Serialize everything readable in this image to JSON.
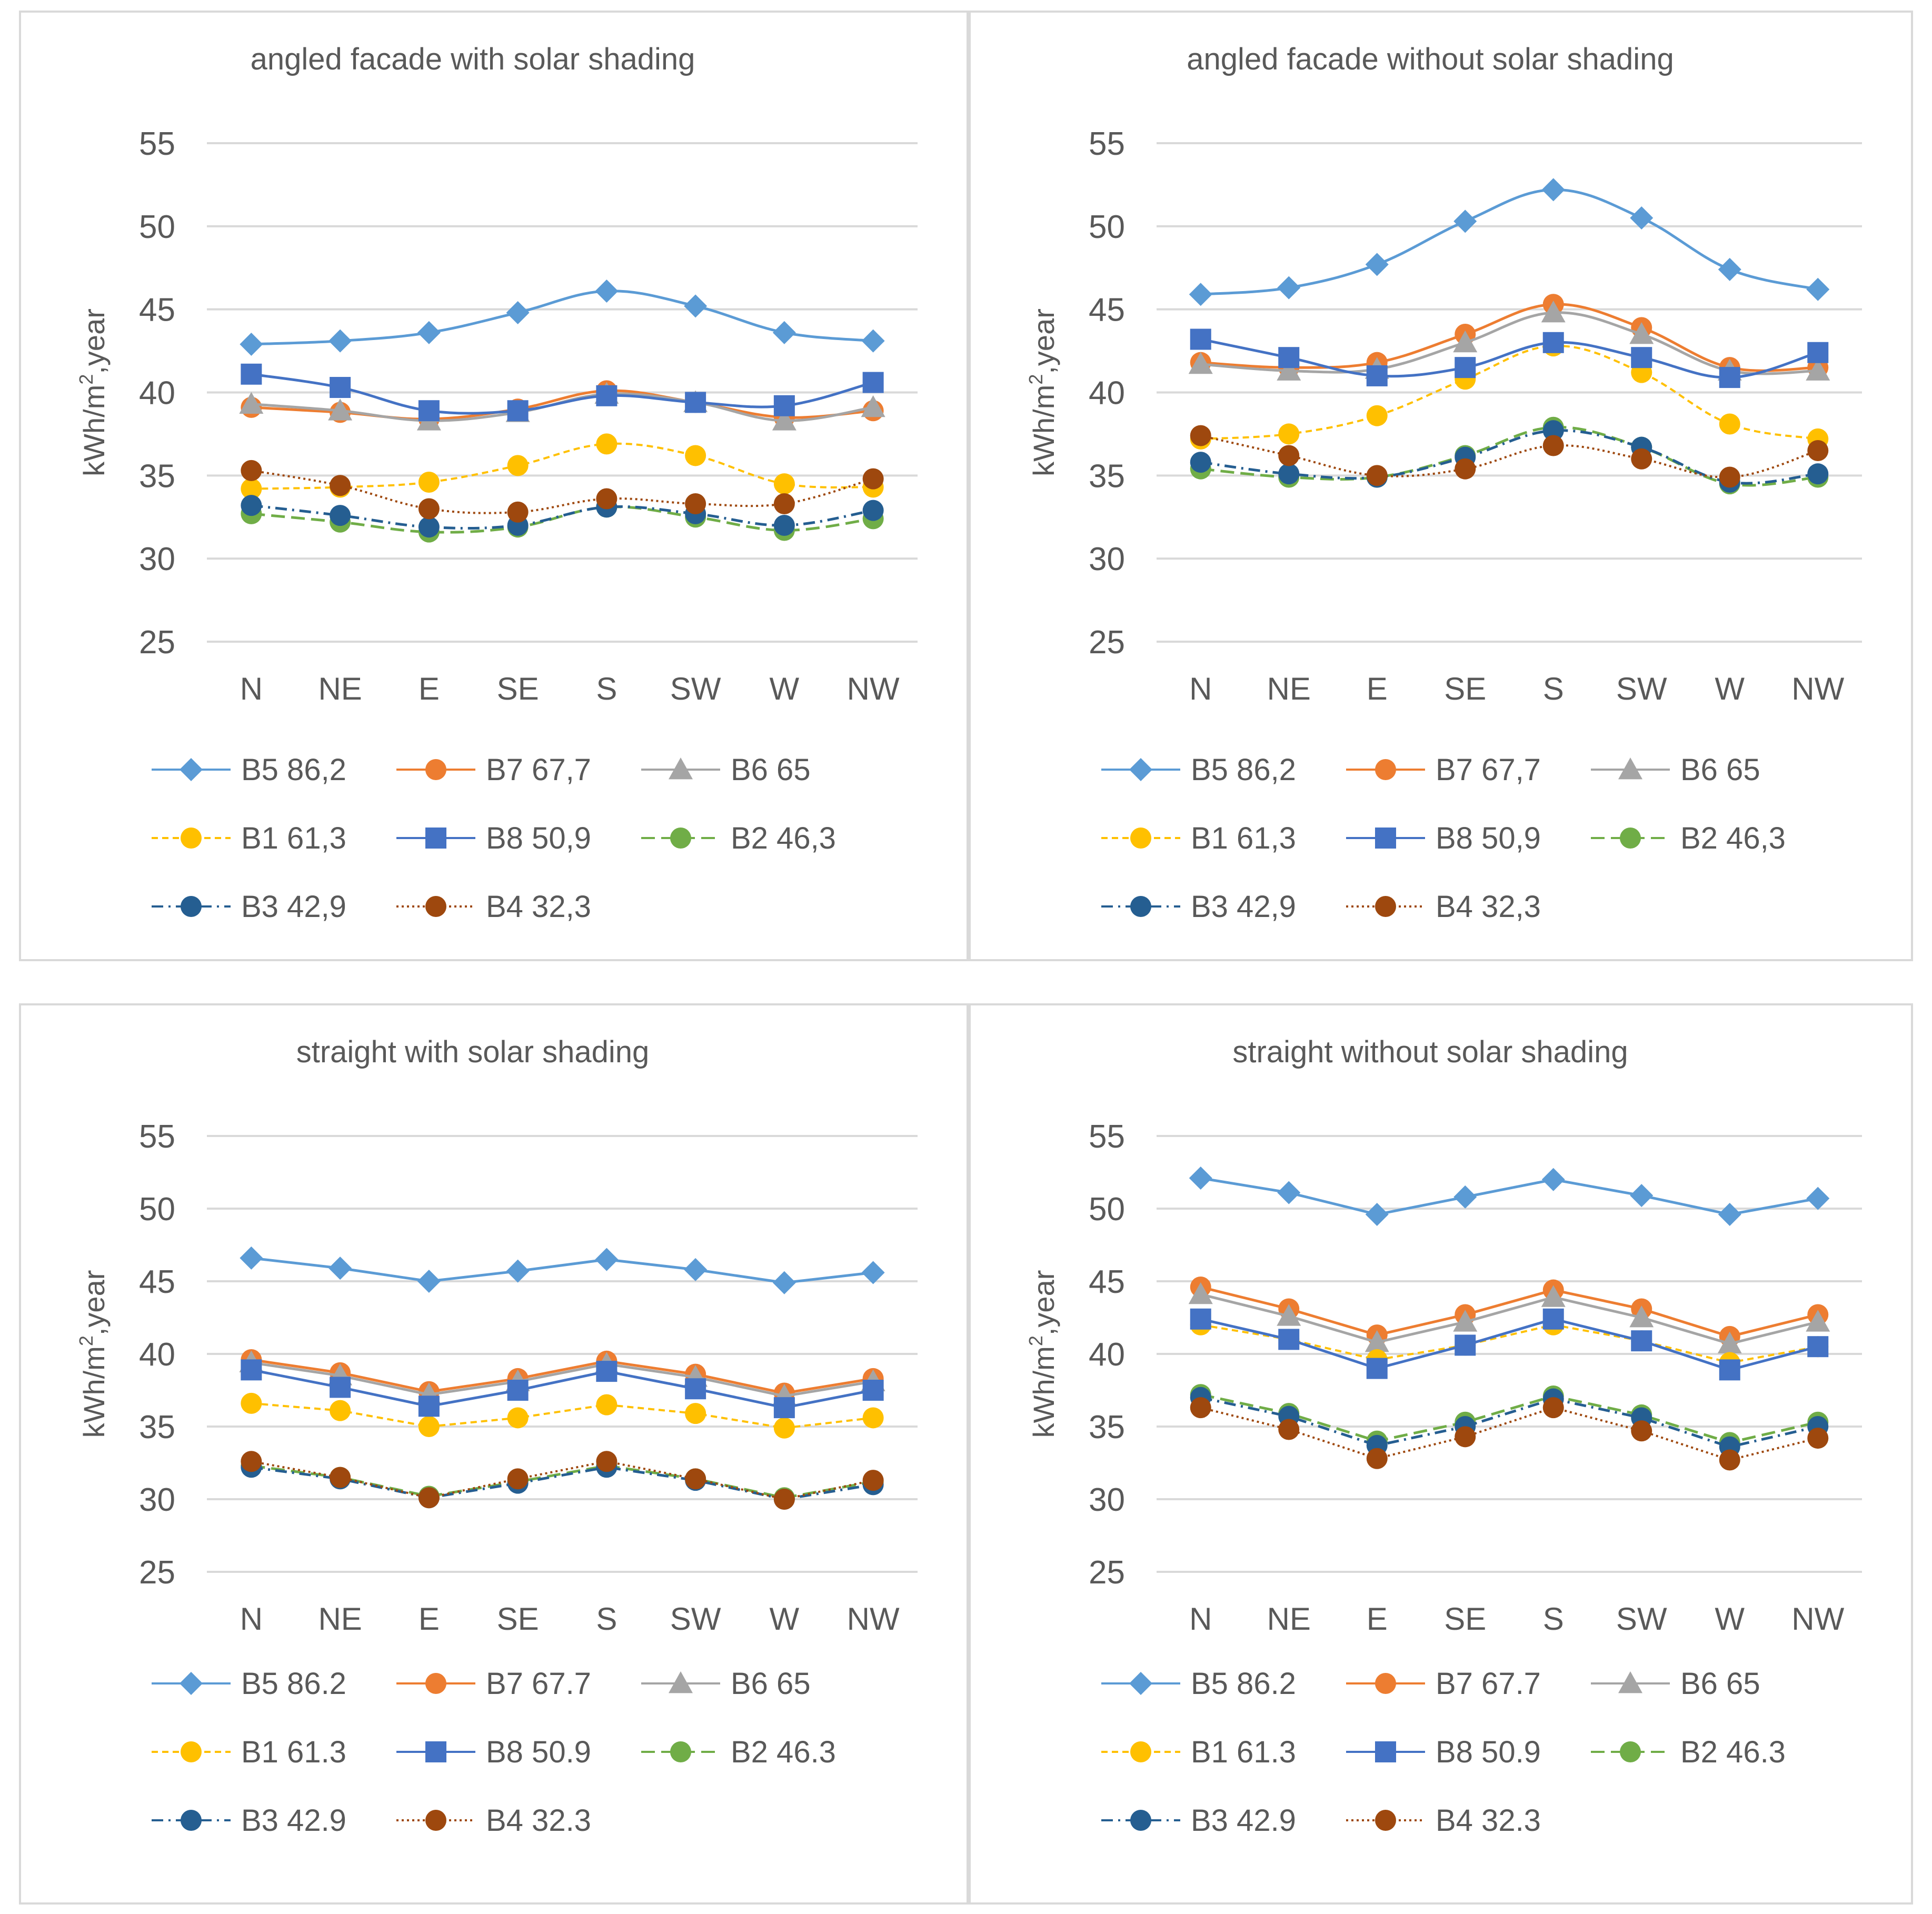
{
  "figure": {
    "y_axis_unit_main": "kWh/m",
    "y_axis_unit_sup": "2",
    "y_axis_unit_tail": ",year"
  },
  "chart_data": [
    {
      "type": "line",
      "title": "angled facade with solar shading",
      "ylabel": "kWh/m2,year",
      "categories": [
        "N",
        "NE",
        "E",
        "SE",
        "S",
        "SW",
        "W",
        "NW"
      ],
      "ylim": [
        25,
        55
      ],
      "yticks": [
        25,
        30,
        35,
        40,
        45,
        50,
        55
      ],
      "smooth": true,
      "series": [
        {
          "key": "B5",
          "name": "B5 86,2",
          "color": "#5B9BD5",
          "marker": "diamond",
          "dash": "solid",
          "values": [
            42.9,
            43.1,
            43.6,
            44.8,
            46.1,
            45.2,
            43.6,
            43.1
          ]
        },
        {
          "key": "B7",
          "name": "B7 67,7",
          "color": "#ED7D31",
          "marker": "circle",
          "dash": "solid",
          "values": [
            39.1,
            38.8,
            38.4,
            39.0,
            40.1,
            39.4,
            38.5,
            38.9
          ]
        },
        {
          "key": "B6",
          "name": "B6 65",
          "color": "#A5A5A5",
          "marker": "triangle",
          "dash": "solid",
          "values": [
            39.3,
            38.9,
            38.3,
            38.8,
            39.9,
            39.4,
            38.3,
            39.1
          ]
        },
        {
          "key": "B1",
          "name": "B1 61,3",
          "color": "#FFC000",
          "marker": "circle",
          "dash": "dash-small",
          "values": [
            34.2,
            34.3,
            34.6,
            35.6,
            36.9,
            36.2,
            34.5,
            34.3
          ]
        },
        {
          "key": "B8",
          "name": "B8 50,9",
          "color": "#4472C4",
          "marker": "square",
          "dash": "solid",
          "values": [
            41.1,
            40.3,
            38.9,
            38.9,
            39.8,
            39.4,
            39.2,
            40.6
          ]
        },
        {
          "key": "B2",
          "name": "B2 46,3",
          "color": "#70AD47",
          "marker": "circle",
          "dash": "dash-long",
          "values": [
            32.7,
            32.2,
            31.6,
            31.9,
            33.1,
            32.5,
            31.7,
            32.4
          ]
        },
        {
          "key": "B3",
          "name": "B3 42,9",
          "color": "#255E91",
          "marker": "circle",
          "dash": "dash-dot",
          "values": [
            33.2,
            32.6,
            31.9,
            32.0,
            33.1,
            32.7,
            32.0,
            32.9
          ]
        },
        {
          "key": "B4",
          "name": "B4 32,3",
          "color": "#9E480E",
          "marker": "circle",
          "dash": "dot",
          "values": [
            35.3,
            34.4,
            33.0,
            32.8,
            33.6,
            33.3,
            33.3,
            34.8
          ]
        }
      ]
    },
    {
      "type": "line",
      "title": "angled facade without solar shading",
      "ylabel": "kWh/m2,year",
      "categories": [
        "N",
        "NE",
        "E",
        "SE",
        "S",
        "SW",
        "W",
        "NW"
      ],
      "ylim": [
        25,
        55
      ],
      "yticks": [
        25,
        30,
        35,
        40,
        45,
        50,
        55
      ],
      "smooth": true,
      "series": [
        {
          "key": "B5",
          "name": "B5 86,2",
          "color": "#5B9BD5",
          "marker": "diamond",
          "dash": "solid",
          "values": [
            45.9,
            46.3,
            47.7,
            50.3,
            52.2,
            50.5,
            47.4,
            46.2
          ]
        },
        {
          "key": "B7",
          "name": "B7 67,7",
          "color": "#ED7D31",
          "marker": "circle",
          "dash": "solid",
          "values": [
            41.8,
            41.5,
            41.8,
            43.5,
            45.3,
            43.9,
            41.5,
            41.5
          ]
        },
        {
          "key": "B6",
          "name": "B6 65",
          "color": "#A5A5A5",
          "marker": "triangle",
          "dash": "solid",
          "values": [
            41.7,
            41.3,
            41.4,
            43.0,
            44.8,
            43.5,
            41.3,
            41.3
          ]
        },
        {
          "key": "B1",
          "name": "B1 61,3",
          "color": "#FFC000",
          "marker": "circle",
          "dash": "dash-small",
          "values": [
            37.2,
            37.5,
            38.6,
            40.8,
            42.8,
            41.2,
            38.1,
            37.2
          ]
        },
        {
          "key": "B8",
          "name": "B8 50,9",
          "color": "#4472C4",
          "marker": "square",
          "dash": "solid",
          "values": [
            43.2,
            42.1,
            41.0,
            41.5,
            43.0,
            42.1,
            40.9,
            42.4
          ]
        },
        {
          "key": "B2",
          "name": "B2 46,3",
          "color": "#70AD47",
          "marker": "circle",
          "dash": "dash-long",
          "values": [
            35.4,
            34.9,
            34.9,
            36.2,
            37.9,
            36.7,
            34.5,
            34.9
          ]
        },
        {
          "key": "B3",
          "name": "B3 42,9",
          "color": "#255E91",
          "marker": "circle",
          "dash": "dash-dot",
          "values": [
            35.8,
            35.1,
            34.9,
            36.1,
            37.7,
            36.7,
            34.6,
            35.1
          ]
        },
        {
          "key": "B4",
          "name": "B4 32,3",
          "color": "#9E480E",
          "marker": "circle",
          "dash": "dot",
          "values": [
            37.4,
            36.2,
            35.0,
            35.4,
            36.8,
            36.0,
            34.9,
            36.5
          ]
        }
      ]
    },
    {
      "type": "line",
      "title": "straight with solar shading",
      "ylabel": "kWh/m2,year",
      "categories": [
        "N",
        "NE",
        "E",
        "SE",
        "S",
        "SW",
        "W",
        "NW"
      ],
      "ylim": [
        25,
        55
      ],
      "yticks": [
        25,
        30,
        35,
        40,
        45,
        50,
        55
      ],
      "smooth": false,
      "series": [
        {
          "key": "B5",
          "name": "B5 86.2",
          "color": "#5B9BD5",
          "marker": "diamond",
          "dash": "solid",
          "values": [
            46.6,
            45.9,
            45.0,
            45.7,
            46.5,
            45.8,
            44.9,
            45.6
          ]
        },
        {
          "key": "B7",
          "name": "B7 67.7",
          "color": "#ED7D31",
          "marker": "circle",
          "dash": "solid",
          "values": [
            39.6,
            38.7,
            37.4,
            38.3,
            39.5,
            38.6,
            37.3,
            38.3
          ]
        },
        {
          "key": "B6",
          "name": "B6 65",
          "color": "#A5A5A5",
          "marker": "triangle",
          "dash": "solid",
          "values": [
            39.4,
            38.5,
            37.2,
            38.1,
            39.3,
            38.4,
            37.1,
            38.1
          ]
        },
        {
          "key": "B1",
          "name": "B1 61.3",
          "color": "#FFC000",
          "marker": "circle",
          "dash": "dash-small",
          "values": [
            36.6,
            36.1,
            35.0,
            35.6,
            36.5,
            35.9,
            34.9,
            35.6
          ]
        },
        {
          "key": "B8",
          "name": "B8 50.9",
          "color": "#4472C4",
          "marker": "square",
          "dash": "solid",
          "values": [
            38.9,
            37.7,
            36.4,
            37.5,
            38.8,
            37.6,
            36.3,
            37.5
          ]
        },
        {
          "key": "B2",
          "name": "B2 46.3",
          "color": "#70AD47",
          "marker": "circle",
          "dash": "dash-long",
          "values": [
            32.3,
            31.5,
            30.2,
            31.2,
            32.3,
            31.4,
            30.1,
            31.2
          ]
        },
        {
          "key": "B3",
          "name": "B3 42.9",
          "color": "#255E91",
          "marker": "circle",
          "dash": "dash-dot",
          "values": [
            32.2,
            31.4,
            30.1,
            31.1,
            32.2,
            31.3,
            30.0,
            31.0
          ]
        },
        {
          "key": "B4",
          "name": "B4 32.3",
          "color": "#9E480E",
          "marker": "circle",
          "dash": "dot",
          "values": [
            32.6,
            31.5,
            30.1,
            31.4,
            32.6,
            31.4,
            30.0,
            31.3
          ]
        }
      ]
    },
    {
      "type": "line",
      "title": "straight without solar shading",
      "ylabel": "kWh/m2,year",
      "categories": [
        "N",
        "NE",
        "E",
        "SE",
        "S",
        "SW",
        "W",
        "NW"
      ],
      "ylim": [
        25,
        55
      ],
      "yticks": [
        25,
        30,
        35,
        40,
        45,
        50,
        55
      ],
      "smooth": false,
      "series": [
        {
          "key": "B5",
          "name": "B5 86.2",
          "color": "#5B9BD5",
          "marker": "diamond",
          "dash": "solid",
          "values": [
            52.1,
            51.1,
            49.6,
            50.8,
            52.0,
            50.9,
            49.6,
            50.7
          ]
        },
        {
          "key": "B7",
          "name": "B7 67.7",
          "color": "#ED7D31",
          "marker": "circle",
          "dash": "solid",
          "values": [
            44.6,
            43.1,
            41.3,
            42.7,
            44.4,
            43.1,
            41.2,
            42.7
          ]
        },
        {
          "key": "B6",
          "name": "B6 65",
          "color": "#A5A5A5",
          "marker": "triangle",
          "dash": "solid",
          "values": [
            44.1,
            42.6,
            40.8,
            42.2,
            43.9,
            42.5,
            40.7,
            42.2
          ]
        },
        {
          "key": "B1",
          "name": "B1 61.3",
          "color": "#FFC000",
          "marker": "circle",
          "dash": "dash-small",
          "values": [
            42.0,
            41.0,
            39.6,
            40.6,
            42.0,
            40.9,
            39.4,
            40.5
          ]
        },
        {
          "key": "B8",
          "name": "B8 50.9",
          "color": "#4472C4",
          "marker": "square",
          "dash": "solid",
          "values": [
            42.4,
            41.0,
            39.0,
            40.6,
            42.4,
            40.9,
            38.9,
            40.5
          ]
        },
        {
          "key": "B2",
          "name": "B2 46.3",
          "color": "#70AD47",
          "marker": "circle",
          "dash": "dash-long",
          "values": [
            37.2,
            35.9,
            34.0,
            35.3,
            37.1,
            35.8,
            33.9,
            35.3
          ]
        },
        {
          "key": "B3",
          "name": "B3 42.9",
          "color": "#255E91",
          "marker": "circle",
          "dash": "dash-dot",
          "values": [
            37.0,
            35.7,
            33.7,
            35.0,
            36.9,
            35.6,
            33.6,
            35.0
          ]
        },
        {
          "key": "B4",
          "name": "B4 32.3",
          "color": "#9E480E",
          "marker": "circle",
          "dash": "dot",
          "values": [
            36.3,
            34.8,
            32.8,
            34.3,
            36.3,
            34.7,
            32.7,
            34.2
          ]
        }
      ]
    }
  ]
}
